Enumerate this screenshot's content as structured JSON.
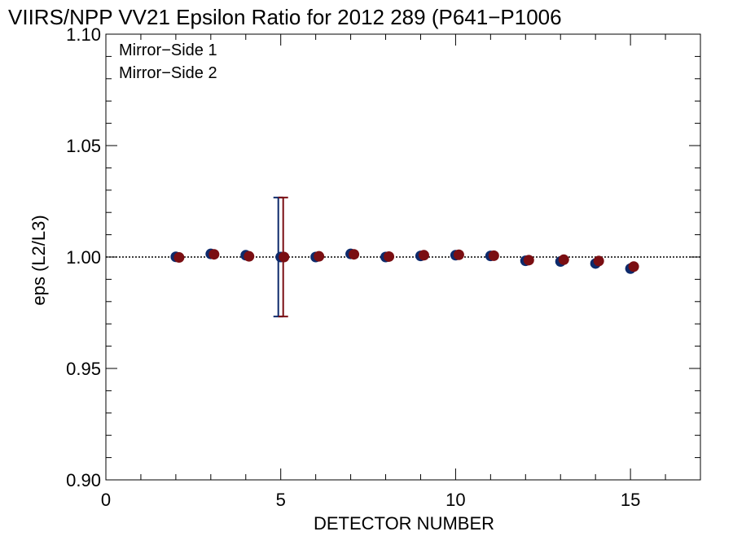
{
  "chart_data": {
    "type": "scatter",
    "title": "VIIRS/NPP VV21 Epsilon Ratio for 2012 289 (P641−P1006",
    "xlabel": "DETECTOR NUMBER",
    "ylabel": "eps (L2/L3)",
    "xlim": [
      0,
      17
    ],
    "ylim": [
      0.9,
      1.1
    ],
    "x_ticks": [
      0,
      5,
      10,
      15
    ],
    "y_ticks": [
      0.9,
      0.95,
      1.0,
      1.05,
      1.1
    ],
    "x_tick_labels": [
      "0",
      "5",
      "10",
      "15"
    ],
    "y_tick_labels": [
      "0.90",
      "0.95",
      "1.00",
      "1.05",
      "1.10"
    ],
    "reference_line": 1.0,
    "grid": false,
    "legend_position": "top-left",
    "series": [
      {
        "name": "Mirror−Side 1",
        "color": "#0d2a6b",
        "x": [
          2,
          3,
          4,
          5,
          6,
          7,
          8,
          9,
          10,
          11,
          12,
          13,
          14,
          15
        ],
        "y": [
          1.0001,
          1.0014,
          1.0008,
          1.0,
          1.0,
          1.0014,
          1.0,
          1.0005,
          1.0008,
          1.0005,
          0.9983,
          0.998,
          0.9971,
          0.9948
        ],
        "error_bars": [
          {
            "x": 5,
            "low": 0.9733,
            "high": 1.0267
          }
        ]
      },
      {
        "name": "Mirror−Side 2",
        "color": "#7a0e12",
        "x": [
          2,
          3,
          4,
          5,
          6,
          7,
          8,
          9,
          10,
          11,
          12,
          13,
          14,
          15
        ],
        "y": [
          0.9998,
          1.0012,
          1.0003,
          1.0,
          1.0003,
          1.0012,
          1.0002,
          1.0008,
          1.001,
          1.0006,
          0.9986,
          0.9988,
          0.9982,
          0.9957
        ],
        "error_bars": [
          {
            "x": 5,
            "low": 0.9733,
            "high": 1.0267
          }
        ]
      }
    ]
  }
}
